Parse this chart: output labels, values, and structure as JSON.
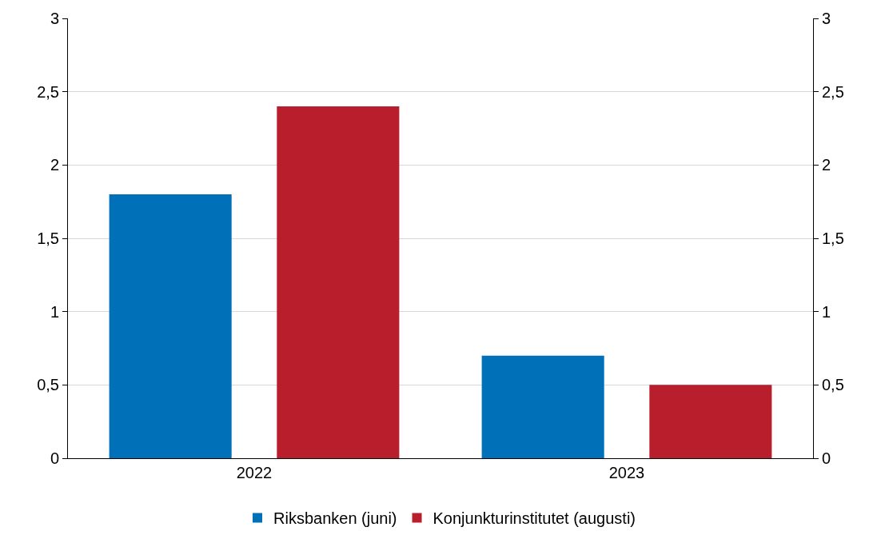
{
  "chart_data": {
    "type": "bar",
    "categories": [
      "2022",
      "2023"
    ],
    "series": [
      {
        "name": "Riksbanken (juni)",
        "color": "#0070b8",
        "values": [
          1.8,
          0.7
        ]
      },
      {
        "name": "Konjunkturinstitutet (augusti)",
        "color": "#b81e2b",
        "values": [
          2.4,
          0.5
        ]
      }
    ],
    "ylim": [
      0,
      3
    ],
    "yticks": [
      0,
      {
        "value": 0.5,
        "label": "0,5"
      },
      1,
      {
        "value": 1.5,
        "label": "1,5"
      },
      2,
      {
        "value": 2.5,
        "label": "2,5"
      },
      3
    ],
    "y2lim": [
      0,
      3
    ],
    "y2ticks": [
      0,
      {
        "value": 0.5,
        "label": "0,5"
      },
      1,
      {
        "value": 1.5,
        "label": "1,5"
      },
      2,
      {
        "value": 2.5,
        "label": "2,5"
      },
      3
    ],
    "grid": "y",
    "legend": "bottom"
  }
}
